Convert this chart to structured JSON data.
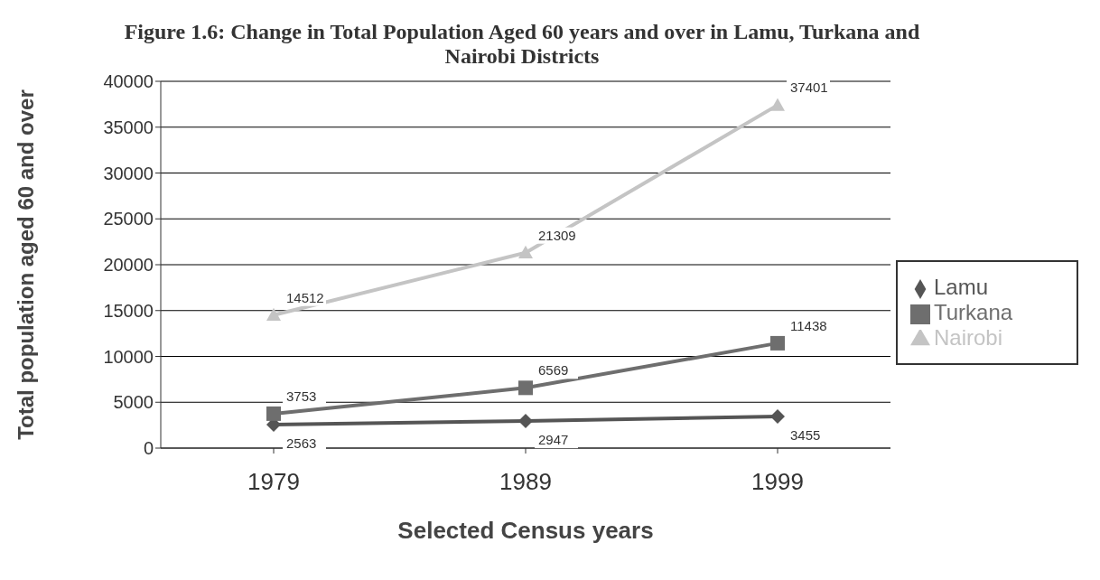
{
  "chart_data": {
    "type": "line",
    "title": "Figure 1.6: Change in Total Population Aged 60 years and over in Lamu, Turkana and Nairobi Districts",
    "xlabel": "Selected Census years",
    "ylabel": "Total population aged 60 and over",
    "categories": [
      "1979",
      "1989",
      "1999"
    ],
    "series": [
      {
        "name": "Lamu",
        "color": "#555555",
        "marker": "diamond",
        "values": [
          2563,
          2947,
          3455
        ]
      },
      {
        "name": "Turkana",
        "color": "#6e6e6e",
        "marker": "square",
        "values": [
          3753,
          6569,
          11438
        ]
      },
      {
        "name": "Nairobi",
        "color": "#c4c4c4",
        "marker": "triangle",
        "values": [
          14512,
          21309,
          37401
        ]
      }
    ],
    "ylim": [
      0,
      40000
    ],
    "yticks": [
      0,
      5000,
      10000,
      15000,
      20000,
      25000,
      30000,
      35000,
      40000
    ],
    "grid": "y",
    "legend": "right",
    "data_labels": true
  }
}
